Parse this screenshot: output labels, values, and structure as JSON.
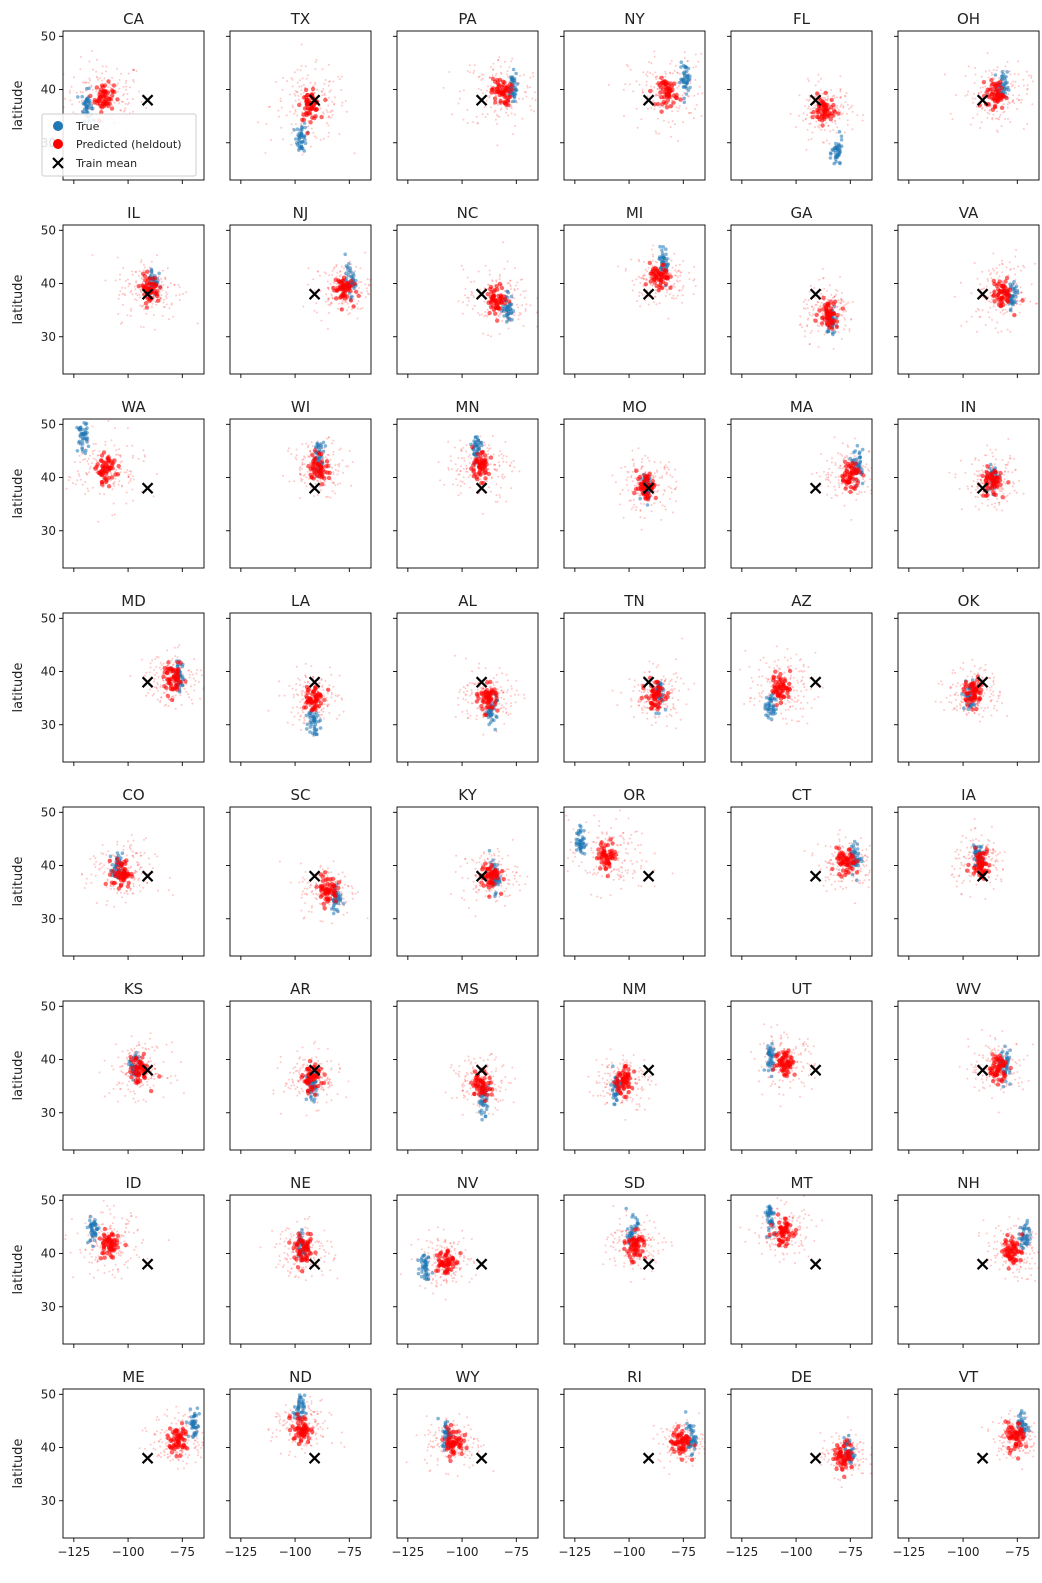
{
  "figure": {
    "ylabel": "latitude"
  },
  "legend": {
    "entries": [
      "True",
      "Predicted (heldout)",
      "Train mean"
    ]
  },
  "colors": {
    "true": "#1f77b4",
    "pred": "#ff0000",
    "mean": "#000000"
  },
  "chart_data": {
    "type": "scatter",
    "xlim": [
      -130,
      -65
    ],
    "ylim": [
      23,
      51
    ],
    "xticks": [
      -125,
      -100,
      -75
    ],
    "yticks": [
      30,
      40,
      50
    ],
    "xtick_labels": [
      "−125",
      "−100",
      "−75"
    ],
    "ytick_labels": [
      "30",
      "40",
      "50"
    ],
    "grid": false,
    "legend_position": "center-left",
    "train_mean": [
      -91,
      38
    ],
    "panels": [
      {
        "title": "CA",
        "true": [
          -119,
          37
        ],
        "pred": [
          -111,
          38.5
        ],
        "spread": 7
      },
      {
        "title": "TX",
        "true": [
          -97,
          31
        ],
        "pred": [
          -93,
          37
        ],
        "spread": 7
      },
      {
        "title": "PA",
        "true": [
          -77,
          40.5
        ],
        "pred": [
          -82,
          39.5
        ],
        "spread": 7
      },
      {
        "title": "NY",
        "true": [
          -74,
          42
        ],
        "pred": [
          -82,
          39.5
        ],
        "spread": 7
      },
      {
        "title": "FL",
        "true": [
          -81,
          28
        ],
        "pred": [
          -87,
          36
        ],
        "spread": 5
      },
      {
        "title": "OH",
        "true": [
          -82,
          40.5
        ],
        "pred": [
          -85,
          39
        ],
        "spread": 6
      },
      {
        "title": "IL",
        "true": [
          -88.5,
          40.5
        ],
        "pred": [
          -90,
          39
        ],
        "spread": 6
      },
      {
        "title": "NJ",
        "true": [
          -74.5,
          40.5
        ],
        "pred": [
          -78,
          39
        ],
        "spread": 5
      },
      {
        "title": "NC",
        "true": [
          -79,
          35.5
        ],
        "pred": [
          -84,
          37
        ],
        "spread": 6
      },
      {
        "title": "MI",
        "true": [
          -84,
          44
        ],
        "pred": [
          -86,
          41
        ],
        "spread": 5
      },
      {
        "title": "GA",
        "true": [
          -84,
          33
        ],
        "pred": [
          -85,
          34.5
        ],
        "spread": 5
      },
      {
        "title": "VA",
        "true": [
          -77.5,
          37.5
        ],
        "pred": [
          -82,
          38
        ],
        "spread": 6
      },
      {
        "title": "WA",
        "true": [
          -121,
          47.5
        ],
        "pred": [
          -110,
          41.5
        ],
        "spread": 7
      },
      {
        "title": "WI",
        "true": [
          -89,
          44
        ],
        "pred": [
          -89,
          42
        ],
        "spread": 5
      },
      {
        "title": "MN",
        "true": [
          -93.5,
          45.5
        ],
        "pred": [
          -92,
          42
        ],
        "spread": 6
      },
      {
        "title": "MO",
        "true": [
          -92,
          38.5
        ],
        "pred": [
          -92,
          38.5
        ],
        "spread": 5
      },
      {
        "title": "MA",
        "true": [
          -71.5,
          42.3
        ],
        "pred": [
          -75,
          40.5
        ],
        "spread": 5
      },
      {
        "title": "IN",
        "true": [
          -86,
          40
        ],
        "pred": [
          -87,
          39
        ],
        "spread": 5
      },
      {
        "title": "MD",
        "true": [
          -76.5,
          39
        ],
        "pred": [
          -79,
          38.5
        ],
        "spread": 5
      },
      {
        "title": "LA",
        "true": [
          -91.5,
          31
        ],
        "pred": [
          -92,
          35
        ],
        "spread": 5
      },
      {
        "title": "AL",
        "true": [
          -86.5,
          33
        ],
        "pred": [
          -88,
          35
        ],
        "spread": 5
      },
      {
        "title": "TN",
        "true": [
          -86,
          36
        ],
        "pred": [
          -88,
          35.5
        ],
        "spread": 5
      },
      {
        "title": "AZ",
        "true": [
          -111.5,
          33.5
        ],
        "pred": [
          -107,
          37
        ],
        "spread": 6
      },
      {
        "title": "OK",
        "true": [
          -97,
          35.5
        ],
        "pred": [
          -95,
          36
        ],
        "spread": 5
      },
      {
        "title": "CO",
        "true": [
          -105,
          39.5
        ],
        "pred": [
          -103,
          38.5
        ],
        "spread": 6
      },
      {
        "title": "SC",
        "true": [
          -81,
          34
        ],
        "pred": [
          -85,
          35.5
        ],
        "spread": 5
      },
      {
        "title": "KY",
        "true": [
          -85,
          37.8
        ],
        "pred": [
          -87,
          38
        ],
        "spread": 5
      },
      {
        "title": "OR",
        "true": [
          -122.5,
          44.5
        ],
        "pred": [
          -110,
          42
        ],
        "spread": 7
      },
      {
        "title": "CT",
        "true": [
          -72.7,
          41.6
        ],
        "pred": [
          -77,
          40.5
        ],
        "spread": 5
      },
      {
        "title": "IA",
        "true": [
          -93,
          42
        ],
        "pred": [
          -92,
          40.5
        ],
        "spread": 5
      },
      {
        "title": "KS",
        "true": [
          -97,
          38.5
        ],
        "pred": [
          -95,
          38
        ],
        "spread": 5
      },
      {
        "title": "AR",
        "true": [
          -92.5,
          35
        ],
        "pred": [
          -92,
          36.5
        ],
        "spread": 5
      },
      {
        "title": "MS",
        "true": [
          -90,
          32.5
        ],
        "pred": [
          -91,
          35.5
        ],
        "spread": 5
      },
      {
        "title": "NM",
        "true": [
          -106,
          34.5
        ],
        "pred": [
          -103,
          36
        ],
        "spread": 5
      },
      {
        "title": "UT",
        "true": [
          -111.8,
          40.5
        ],
        "pred": [
          -105,
          39.5
        ],
        "spread": 5
      },
      {
        "title": "WV",
        "true": [
          -80.5,
          38.8
        ],
        "pred": [
          -84,
          38.5
        ],
        "spread": 5
      },
      {
        "title": "ID",
        "true": [
          -116,
          44.5
        ],
        "pred": [
          -109,
          41.5
        ],
        "spread": 6
      },
      {
        "title": "NE",
        "true": [
          -97,
          41.5
        ],
        "pred": [
          -96,
          40.5
        ],
        "spread": 5
      },
      {
        "title": "NV",
        "true": [
          -117,
          38
        ],
        "pred": [
          -108,
          38.5
        ],
        "spread": 5
      },
      {
        "title": "SD",
        "true": [
          -98.5,
          44
        ],
        "pred": [
          -97,
          41.5
        ],
        "spread": 5
      },
      {
        "title": "MT",
        "true": [
          -112,
          47
        ],
        "pred": [
          -106,
          44
        ],
        "spread": 5
      },
      {
        "title": "NH",
        "true": [
          -71.5,
          43.3
        ],
        "pred": [
          -77,
          40.5
        ],
        "spread": 5
      },
      {
        "title": "ME",
        "true": [
          -69.5,
          44.5
        ],
        "pred": [
          -77,
          41.5
        ],
        "spread": 5
      },
      {
        "title": "ND",
        "true": [
          -98,
          47
        ],
        "pred": [
          -97,
          43.5
        ],
        "spread": 5
      },
      {
        "title": "WY",
        "true": [
          -107,
          42.5
        ],
        "pred": [
          -104,
          41
        ],
        "spread": 5
      },
      {
        "title": "RI",
        "true": [
          -71.5,
          41.7
        ],
        "pred": [
          -76,
          41
        ],
        "spread": 4
      },
      {
        "title": "DE",
        "true": [
          -75.5,
          39.2
        ],
        "pred": [
          -78,
          38.5
        ],
        "spread": 4
      },
      {
        "title": "VT",
        "true": [
          -72.7,
          44
        ],
        "pred": [
          -76,
          42
        ],
        "spread": 4
      }
    ]
  }
}
